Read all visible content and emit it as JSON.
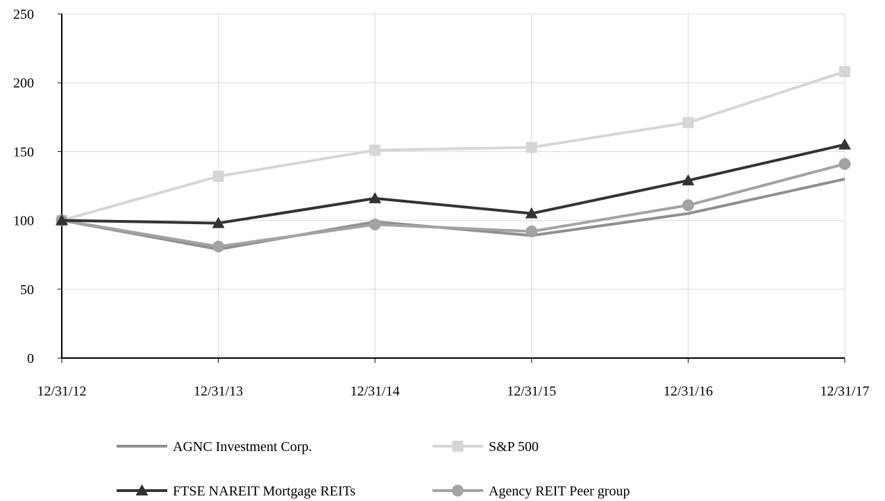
{
  "chart_data": {
    "type": "line",
    "title": "",
    "xlabel": "",
    "ylabel": "",
    "x": [
      "12/31/12",
      "12/31/13",
      "12/31/14",
      "12/31/15",
      "12/31/16",
      "12/31/17"
    ],
    "ylim": [
      0,
      250
    ],
    "yticks": [
      "0",
      "50",
      "100",
      "150",
      "200",
      "250"
    ],
    "grid": true,
    "legend_position": "bottom",
    "series": [
      {
        "name": "AGNC Investment Corp.",
        "values": [
          100,
          79,
          99,
          89,
          105,
          130
        ],
        "color": "#8f8f8f",
        "marker": "none"
      },
      {
        "name": "S&P 500",
        "values": [
          100,
          132,
          151,
          153,
          171,
          208
        ],
        "color": "#d6d6d6",
        "marker": "square"
      },
      {
        "name": "FTSE NAREIT Mortgage REITs",
        "values": [
          100,
          98,
          116,
          105,
          129,
          155
        ],
        "color": "#333333",
        "marker": "triangle"
      },
      {
        "name": "Agency REIT Peer group",
        "values": [
          100,
          81,
          97,
          92,
          111,
          141
        ],
        "color": "#a3a3a3",
        "marker": "circle"
      }
    ]
  }
}
